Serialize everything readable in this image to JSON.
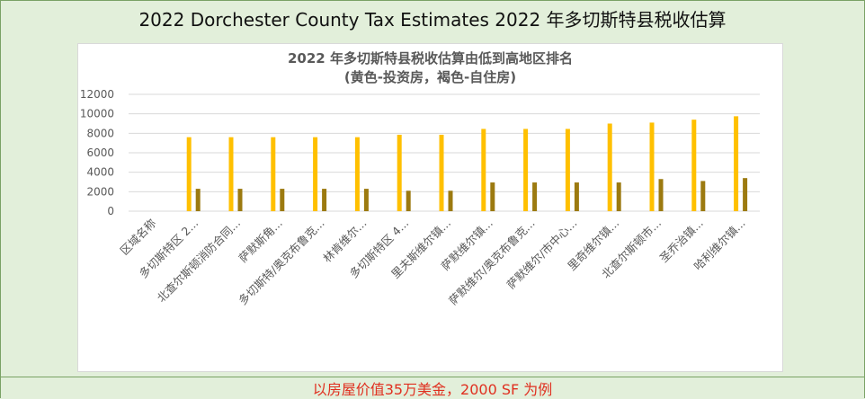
{
  "page": {
    "header_title": "2022 Dorchester County Tax  Estimates 2022 年多切斯特县税收估算",
    "footer_note": "以房屋价值35万美金，2000 SF 为例"
  },
  "colors": {
    "investment": "#ffc000",
    "residence": "#9c7a10",
    "gridline": "#d9d9d9",
    "background": "#e2efda"
  },
  "chart_data": {
    "type": "bar",
    "title": "2022 年多切斯特县税收估算由低到高地区排名",
    "subtitle": "(黄色-投资房，褐色-自住房)",
    "categories": [
      "区域名称",
      "多切斯特区 2...",
      "北查尔斯顿消防合同...",
      "萨默斯角...",
      "多切斯特/奥克布鲁克...",
      "林肯维尔...",
      "多切斯特区 4...",
      "里夫斯维尔镇...",
      "萨默维尔镇...",
      "萨默维尔/奥克布鲁克...",
      "萨默维尔/市中心...",
      "里奇维尔镇...",
      "北查尔斯顿市...",
      "圣乔治镇...",
      "哈利维尔镇..."
    ],
    "series": [
      {
        "color": "#ffc000",
        "values": [
          null,
          7600,
          7600,
          7600,
          7600,
          7600,
          7850,
          7850,
          8450,
          8450,
          8450,
          9000,
          9100,
          9400,
          9750
        ]
      },
      {
        "color": "#9c7a10",
        "values": [
          null,
          2300,
          2300,
          2300,
          2300,
          2300,
          2100,
          2100,
          2950,
          2950,
          2950,
          2950,
          3300,
          3100,
          3400
        ]
      }
    ],
    "ylim": [
      0,
      12000
    ],
    "yticks": [
      0,
      2000,
      4000,
      6000,
      8000,
      10000,
      12000
    ],
    "grid": true,
    "legend": "none"
  }
}
